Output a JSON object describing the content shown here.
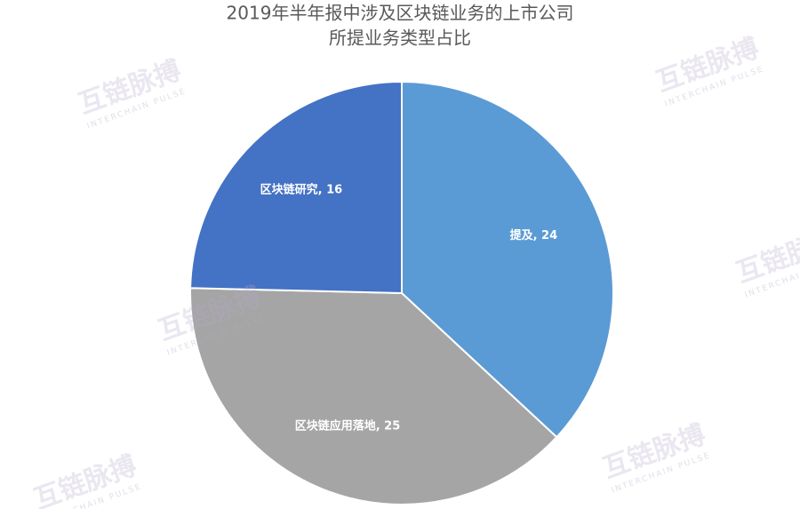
{
  "chart_data": {
    "type": "pie",
    "title": [
      "2019年半年报中涉及区块链业务的上市公司",
      "所提业务类型占比"
    ],
    "categories": [
      "提及",
      "区块链应用落地",
      "区块链研究"
    ],
    "values": [
      24,
      25,
      16
    ],
    "value_labels": [
      "提及, 24",
      "区块链应用落地, 25",
      "区块链研究, 16"
    ],
    "colors": [
      "#5b9bd5",
      "#a5a5a5",
      "#4472c4"
    ]
  },
  "watermark": {
    "text": "互链脉搏",
    "subtext": "INTERCHAIN PULSE"
  }
}
